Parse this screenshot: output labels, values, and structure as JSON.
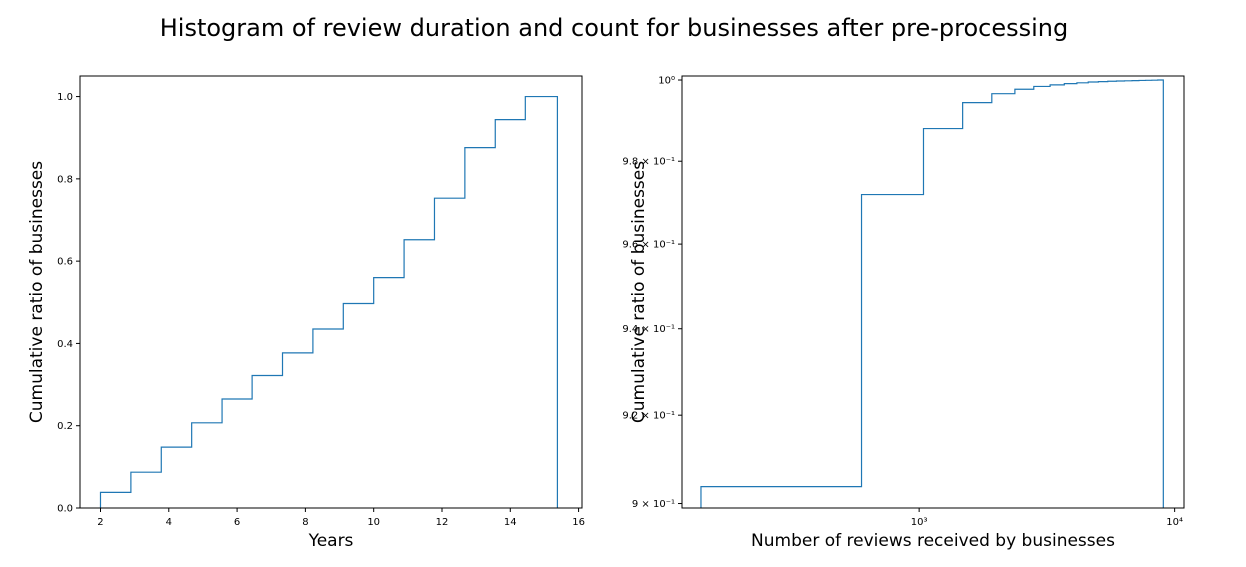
{
  "figure": {
    "title": "Histogram of review duration and count for businesses after pre-processing"
  },
  "chart_data": [
    {
      "type": "line",
      "subtype": "cumulative-step-histogram",
      "title": "",
      "xlabel": "Years",
      "ylabel": "Cumulative ratio of businesses",
      "xlim": [
        1.4,
        16.1
      ],
      "ylim": [
        0,
        1.05
      ],
      "x_scale": "linear",
      "y_scale": "linear",
      "xticks": [
        2,
        4,
        6,
        8,
        10,
        12,
        14,
        16
      ],
      "xtick_labels": [
        "2",
        "4",
        "6",
        "8",
        "10",
        "12",
        "14",
        "16"
      ],
      "yticks": [
        0.0,
        0.2,
        0.4,
        0.6,
        0.8,
        1.0
      ],
      "ytick_labels": [
        "0.0",
        "0.2",
        "0.4",
        "0.6",
        "0.8",
        "1.0"
      ],
      "grid": false,
      "color": "#1f77b4",
      "bin_edges": [
        2.0,
        2.89,
        3.78,
        4.67,
        5.56,
        6.44,
        7.33,
        8.22,
        9.11,
        10.0,
        10.89,
        11.78,
        12.67,
        13.56,
        14.44,
        15.38
      ],
      "values": [
        0.038,
        0.087,
        0.148,
        0.207,
        0.265,
        0.322,
        0.377,
        0.435,
        0.497,
        0.56,
        0.652,
        0.753,
        0.876,
        0.944,
        1.0
      ]
    },
    {
      "type": "line",
      "subtype": "cumulative-step-histogram",
      "title": "",
      "xlabel": "Number of reviews received by businesses",
      "ylabel": "Cumulative ratio of businesses",
      "xlim": [
        118,
        10880
      ],
      "ylim": [
        0.899,
        1.001
      ],
      "x_scale": "log",
      "y_scale": "log",
      "xticks": [
        1000,
        10000
      ],
      "xtick_labels": [
        "10³",
        "10⁴"
      ],
      "yticks": [
        0.9,
        0.92,
        0.94,
        0.96,
        0.98,
        1.0
      ],
      "ytick_labels": [
        "9 × 10⁻¹",
        "9.2 × 10⁻¹",
        "9.4 × 10⁻¹",
        "9.6 × 10⁻¹",
        "9.8 × 10⁻¹",
        "10⁰"
      ],
      "grid": false,
      "color": "#1f77b4",
      "bin_edges": [
        140,
        595,
        1040,
        1480,
        1925,
        2370,
        2810,
        3255,
        3700,
        4145,
        4590,
        5030,
        5475,
        5920,
        6365,
        6810,
        7250,
        7695,
        8140,
        8585,
        9030
      ],
      "values": [
        0.9038,
        0.9719,
        0.988,
        0.9944,
        0.9966,
        0.9977,
        0.9984,
        0.9988,
        0.9991,
        0.9993,
        0.9995,
        0.9996,
        0.9997,
        0.99975,
        0.9998,
        0.99985,
        0.9999,
        0.99993,
        0.99996,
        1.0
      ]
    }
  ]
}
